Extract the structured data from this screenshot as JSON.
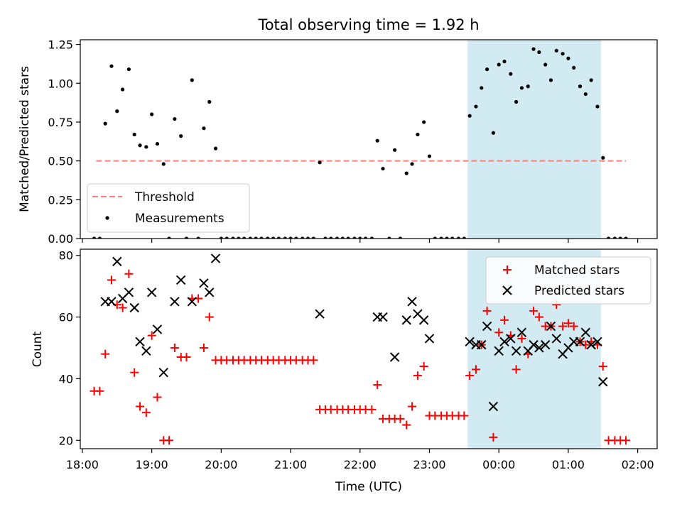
{
  "chart_data": [
    {
      "type": "scatter",
      "title": "Total observing time = 1.92 h",
      "ylabel": "Matched/Predicted stars",
      "ylim": [
        0,
        1.28
      ],
      "yticks": [
        "0.00",
        "0.25",
        "0.50",
        "0.75",
        "1.00",
        "1.25"
      ],
      "ytick_values": [
        0,
        0.25,
        0.5,
        0.75,
        1.0,
        1.25
      ],
      "xlim_hours": [
        17.97,
        26.28
      ],
      "highlight_span_hours": [
        23.55,
        25.47
      ],
      "highlight_color": "#add8e6",
      "legend_position": "lower-left",
      "threshold": {
        "name": "Threshold",
        "value": 0.5,
        "x_range_hours": [
          18.2,
          25.83
        ],
        "color": "#ff7f7f",
        "style": "dashed"
      },
      "series": [
        {
          "name": "Measurements",
          "color": "#000000",
          "marker": "dot",
          "x_hours": [
            18.17,
            18.25,
            18.33,
            18.42,
            18.5,
            18.58,
            18.67,
            18.75,
            18.83,
            18.92,
            19.0,
            19.08,
            19.17,
            19.25,
            19.33,
            19.42,
            19.5,
            19.58,
            19.67,
            19.75,
            19.83,
            19.92,
            20.0,
            20.08,
            20.17,
            20.25,
            20.33,
            20.42,
            20.5,
            20.58,
            20.67,
            20.75,
            20.83,
            20.92,
            21.0,
            21.08,
            21.17,
            21.25,
            21.33,
            21.42,
            21.5,
            21.58,
            21.67,
            21.75,
            21.83,
            21.92,
            22.0,
            22.08,
            22.17,
            22.25,
            22.33,
            22.42,
            22.5,
            22.58,
            22.67,
            22.75,
            22.83,
            22.92,
            23.0,
            23.08,
            23.17,
            23.25,
            23.33,
            23.42,
            23.5,
            23.58,
            23.67,
            23.75,
            23.83,
            23.92,
            24.0,
            24.08,
            24.17,
            24.25,
            24.33,
            24.42,
            24.5,
            24.58,
            24.67,
            24.75,
            24.83,
            24.92,
            25.0,
            25.08,
            25.17,
            25.25,
            25.33,
            25.42,
            25.5,
            25.58,
            25.67,
            25.75,
            25.83
          ],
          "y": [
            0.0,
            0.0,
            0.74,
            1.11,
            0.82,
            0.96,
            1.09,
            0.67,
            0.6,
            0.59,
            0.8,
            0.61,
            0.48,
            0.0,
            0.77,
            0.66,
            0.0,
            1.02,
            0.0,
            0.71,
            0.88,
            0.58,
            0.0,
            0.0,
            0.0,
            0.0,
            0.0,
            0.0,
            0.0,
            0.0,
            0.0,
            0.0,
            0.0,
            0.0,
            0.0,
            0.0,
            0.0,
            0.0,
            0.0,
            0.49,
            0.0,
            0.0,
            0.0,
            0.0,
            0.0,
            0.0,
            0.0,
            0.0,
            0.0,
            0.63,
            0.45,
            0.0,
            0.57,
            0.0,
            0.42,
            0.48,
            0.67,
            0.75,
            0.53,
            0.0,
            0.0,
            0.0,
            0.0,
            0.0,
            0.0,
            0.79,
            0.85,
            0.97,
            1.09,
            0.68,
            1.12,
            1.14,
            1.06,
            0.88,
            0.97,
            0.98,
            1.22,
            1.2,
            1.12,
            1.02,
            1.21,
            1.19,
            1.16,
            1.1,
            0.98,
            0.93,
            1.02,
            0.85,
            0.52,
            0.0,
            0.0,
            0.0,
            0.0
          ]
        }
      ]
    },
    {
      "type": "scatter",
      "xlabel": "Time (UTC)",
      "ylabel": "Count",
      "ylim": [
        17.3,
        82
      ],
      "yticks": [
        "20",
        "40",
        "60",
        "80"
      ],
      "ytick_values": [
        20,
        40,
        60,
        80
      ],
      "xlim_hours": [
        17.97,
        26.28
      ],
      "xticks": [
        "18:00",
        "19:00",
        "20:00",
        "21:00",
        "22:00",
        "23:00",
        "00:00",
        "01:00",
        "02:00"
      ],
      "xtick_hours": [
        18,
        19,
        20,
        21,
        22,
        23,
        24,
        25,
        26
      ],
      "highlight_span_hours": [
        23.55,
        25.47
      ],
      "highlight_color": "#add8e6",
      "legend_position": "upper-right",
      "series": [
        {
          "name": "Matched stars",
          "color": "#ff0000",
          "marker": "plus",
          "x_hours": [
            18.17,
            18.25,
            18.33,
            18.42,
            18.5,
            18.58,
            18.67,
            18.75,
            18.83,
            18.92,
            19.0,
            19.08,
            19.17,
            19.25,
            19.33,
            19.42,
            19.5,
            19.58,
            19.67,
            19.75,
            19.83,
            19.92,
            20.0,
            20.08,
            20.17,
            20.25,
            20.33,
            20.42,
            20.5,
            20.58,
            20.67,
            20.75,
            20.83,
            20.92,
            21.0,
            21.08,
            21.17,
            21.25,
            21.33,
            21.42,
            21.5,
            21.58,
            21.67,
            21.75,
            21.83,
            21.92,
            22.0,
            22.08,
            22.17,
            22.25,
            22.33,
            22.42,
            22.5,
            22.58,
            22.67,
            22.75,
            22.83,
            22.92,
            23.0,
            23.08,
            23.17,
            23.25,
            23.33,
            23.42,
            23.5,
            23.58,
            23.67,
            23.75,
            23.83,
            23.92,
            24.0,
            24.08,
            24.17,
            24.25,
            24.33,
            24.42,
            24.5,
            24.58,
            24.67,
            24.75,
            24.83,
            24.92,
            25.0,
            25.08,
            25.17,
            25.25,
            25.33,
            25.42,
            25.5,
            25.58,
            25.67,
            25.75,
            25.83
          ],
          "y": [
            36,
            36,
            48,
            72,
            64,
            63,
            74,
            42,
            31,
            29,
            54,
            34,
            20,
            20,
            50,
            47,
            47,
            66,
            66,
            50,
            60,
            46,
            46,
            46,
            46,
            46,
            46,
            46,
            46,
            46,
            46,
            46,
            46,
            46,
            46,
            46,
            46,
            46,
            46,
            30,
            30,
            30,
            30,
            30,
            30,
            30,
            30,
            30,
            30,
            38,
            27,
            27,
            27,
            27,
            25,
            31,
            41,
            44,
            28,
            28,
            28,
            28,
            28,
            28,
            28,
            41,
            43,
            51,
            62,
            21,
            55,
            59,
            54,
            43,
            53,
            48,
            62,
            60,
            57,
            57,
            64,
            57,
            58,
            57,
            52,
            51,
            52,
            51,
            44,
            20,
            20,
            20,
            20
          ]
        },
        {
          "name": "Predicted stars",
          "color": "#000000",
          "marker": "x",
          "x_hours": [
            18.33,
            18.42,
            18.5,
            18.58,
            18.67,
            18.75,
            18.83,
            18.92,
            19.0,
            19.08,
            19.17,
            19.33,
            19.42,
            19.58,
            19.75,
            19.83,
            19.92,
            21.42,
            22.25,
            22.33,
            22.5,
            22.67,
            22.75,
            22.83,
            22.92,
            23.0,
            23.58,
            23.67,
            23.75,
            23.83,
            23.92,
            24.0,
            24.08,
            24.17,
            24.25,
            24.33,
            24.42,
            24.5,
            24.58,
            24.67,
            24.75,
            24.83,
            24.92,
            25.0,
            25.08,
            25.17,
            25.25,
            25.33,
            25.42,
            25.5
          ],
          "y": [
            65,
            65,
            78,
            66,
            68,
            63,
            52,
            49,
            68,
            56,
            42,
            65,
            72,
            65,
            71,
            68,
            79,
            61,
            60,
            60,
            47,
            59,
            65,
            61,
            59,
            53,
            52,
            51,
            51,
            57,
            31,
            49,
            52,
            53,
            49,
            55,
            49,
            51,
            50,
            51,
            57,
            53,
            48,
            50,
            52,
            52,
            55,
            51,
            52,
            39
          ]
        }
      ]
    }
  ]
}
